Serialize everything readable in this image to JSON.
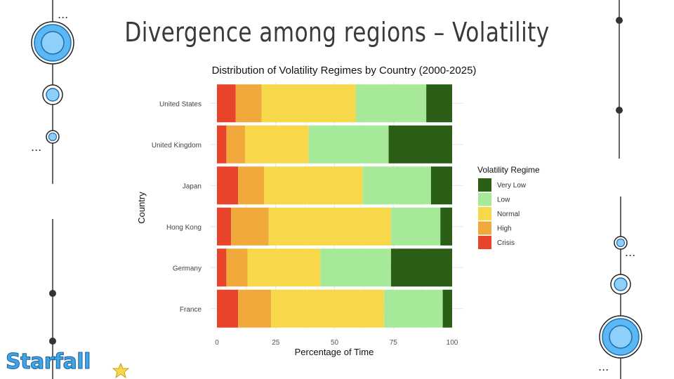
{
  "slide": {
    "title": "Divergence among regions – Volatility",
    "logo_text": "Starfall",
    "dots": "..."
  },
  "chart_data": {
    "type": "bar",
    "orientation": "horizontal",
    "stacked": true,
    "title": "Distribution of Volatility Regimes by Country (2000-2025)",
    "xlabel": "Percentage of Time",
    "ylabel": "Country",
    "xlim": [
      0,
      100
    ],
    "xticks": [
      0,
      25,
      50,
      75,
      100
    ],
    "grid": true,
    "legend_title": "Volatility Regime",
    "legend_position": "right",
    "categories": [
      "United States",
      "United Kingdom",
      "Japan",
      "Hong Kong",
      "Germany",
      "France"
    ],
    "series": [
      {
        "name": "Crisis",
        "color": "#e8432b",
        "values": [
          8,
          4,
          9,
          6,
          4,
          9
        ]
      },
      {
        "name": "High",
        "color": "#f2a93b",
        "values": [
          11,
          8,
          11,
          16,
          9,
          14
        ]
      },
      {
        "name": "Normal",
        "color": "#f7d84a",
        "values": [
          40,
          27,
          42,
          52,
          31,
          48
        ]
      },
      {
        "name": "Low",
        "color": "#a6ea99",
        "values": [
          30,
          34,
          29,
          21,
          30,
          25
        ]
      },
      {
        "name": "Very Low",
        "color": "#2b5e17",
        "values": [
          11,
          27,
          9,
          5,
          26,
          4
        ]
      }
    ],
    "legend_order": [
      "Very Low",
      "Low",
      "Normal",
      "High",
      "Crisis"
    ]
  }
}
